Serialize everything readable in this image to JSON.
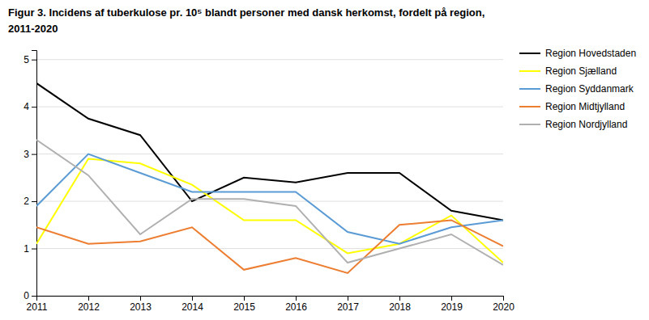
{
  "chart_data": {
    "type": "line",
    "title": "Figur 3. Incidens af tuberkulose pr. 10⁵ blandt personer med dansk herkomst, fordelt på region,",
    "subtitle": "2011-2020",
    "x": [
      2011,
      2012,
      2013,
      2014,
      2015,
      2016,
      2017,
      2018,
      2019,
      2020
    ],
    "xlim": [
      2011,
      2020
    ],
    "xticks": [
      2011,
      2012,
      2013,
      2014,
      2015,
      2016,
      2017,
      2018,
      2019,
      2020
    ],
    "ylim": [
      0,
      5.2
    ],
    "yticks": [
      0,
      1,
      2,
      3,
      4,
      5
    ],
    "grid": true,
    "legend": "right",
    "series": [
      {
        "name": "Region Hovedstaden",
        "color": "#000000",
        "values": [
          4.5,
          3.75,
          3.4,
          2.0,
          2.5,
          2.4,
          2.6,
          2.6,
          1.8,
          1.6
        ]
      },
      {
        "name": "Region Sjælland",
        "color": "#ffff00",
        "values": [
          1.1,
          2.9,
          2.8,
          2.35,
          1.6,
          1.6,
          0.9,
          1.1,
          1.7,
          0.7
        ]
      },
      {
        "name": "Region Syddanmark",
        "color": "#5b9bd5",
        "values": [
          1.9,
          3.0,
          2.6,
          2.2,
          2.2,
          2.2,
          1.35,
          1.1,
          1.45,
          1.6
        ]
      },
      {
        "name": "Region Midtjylland",
        "color": "#ed7d31",
        "values": [
          1.45,
          1.1,
          1.15,
          1.45,
          0.55,
          0.8,
          0.48,
          1.5,
          1.6,
          1.05
        ]
      },
      {
        "name": "Region Nordjylland",
        "color": "#b0b0b0",
        "values": [
          3.3,
          2.55,
          1.3,
          2.05,
          2.05,
          1.9,
          0.7,
          1.0,
          1.3,
          0.65
        ]
      }
    ]
  }
}
